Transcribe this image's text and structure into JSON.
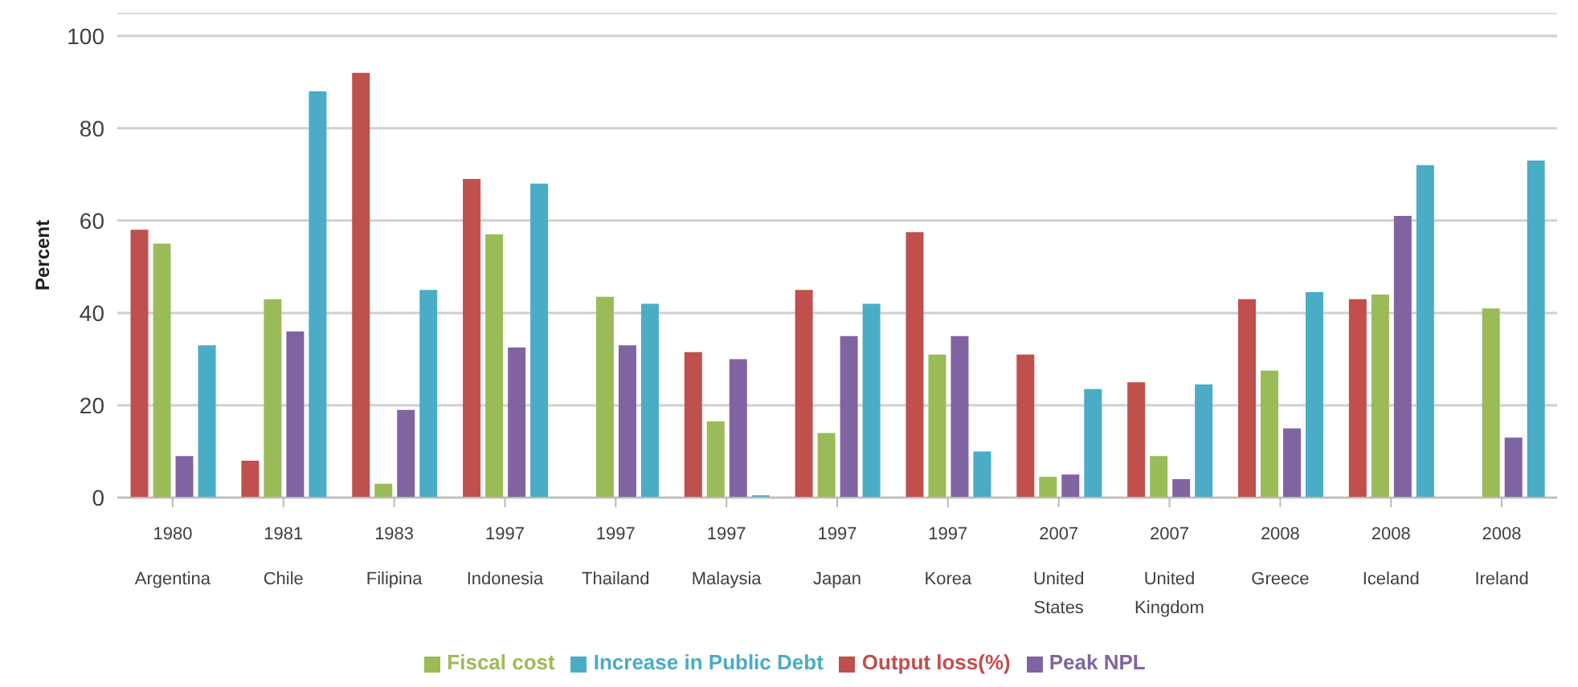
{
  "chart_data": {
    "type": "bar",
    "ylabel": "Percent",
    "categories": [
      "1980\nArgentina",
      "1981\nChile",
      "1983\nFilipina",
      "1997\nIndonesia",
      "1997\nThailand",
      "1997\nMalaysia",
      "1997\nJapan",
      "1997\nKorea",
      "2007\nUnited States",
      "2007\nUnited Kingdom",
      "2008\nGreece",
      "2008\nIceland",
      "2008\nIreland"
    ],
    "series": [
      {
        "name": "Output loss(%)",
        "color": "#c0504d",
        "values": [
          58,
          8,
          92,
          69,
          null,
          31.5,
          45,
          57.5,
          31,
          25,
          43,
          43,
          null
        ]
      },
      {
        "name": "Fiscal cost",
        "color": "#9bbb59",
        "values": [
          55,
          43,
          3,
          57,
          43.5,
          16.5,
          14,
          31,
          4.5,
          9,
          27.5,
          44,
          41
        ]
      },
      {
        "name": "Peak NPL",
        "color": "#8064a2",
        "values": [
          9,
          36,
          19,
          32.5,
          33,
          30,
          35,
          35,
          5,
          4,
          15,
          61,
          13
        ]
      },
      {
        "name": "Increase in Public Debt",
        "color": "#4bacc6",
        "values": [
          33,
          88,
          45,
          68,
          42,
          0.5,
          42,
          10,
          23.5,
          24.5,
          44.5,
          72,
          73
        ]
      }
    ],
    "ylim": [
      0,
      105
    ],
    "yticks": [
      0,
      20,
      40,
      60,
      80,
      100
    ],
    "grid": "y",
    "legend": "bottom"
  }
}
